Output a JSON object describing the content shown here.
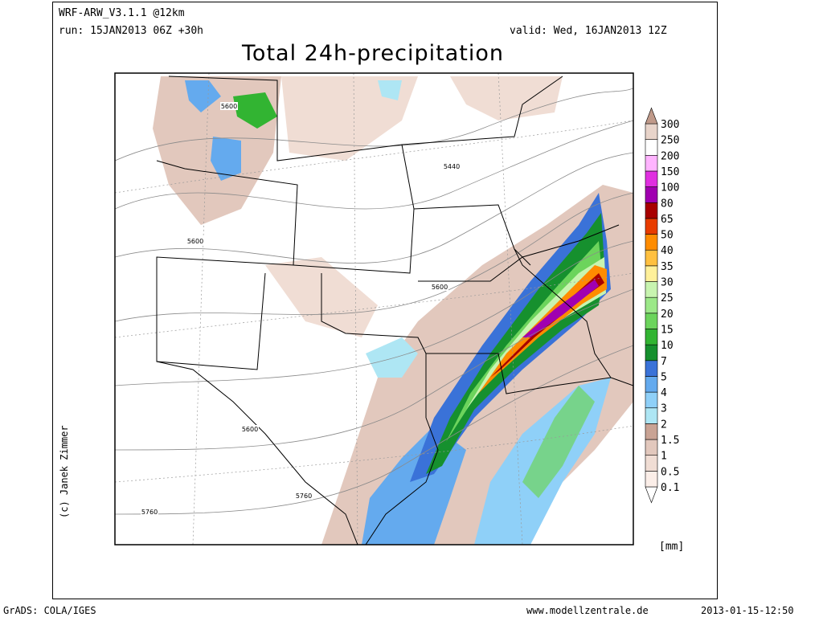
{
  "header": {
    "model": "WRF-ARW_V3.1.1 @12km",
    "run": "run: 15JAN2013 06Z +30h",
    "valid": "valid: Wed, 16JAN2013 12Z",
    "title": "Total 24h-precipitation"
  },
  "map": {
    "contour_labels": [
      "5600",
      "5440",
      "5600",
      "5600",
      "5600",
      "5760",
      "5760"
    ]
  },
  "colorbar": {
    "levels": [
      0.1,
      0.5,
      1,
      1.5,
      2,
      3,
      4,
      5,
      7,
      10,
      15,
      20,
      25,
      30,
      35,
      40,
      50,
      65,
      80,
      100,
      150,
      200,
      250,
      300
    ],
    "colors": [
      "#ffffff",
      "#fbeee8",
      "#f0ddd4",
      "#e2c8bd",
      "#c9a394",
      "#aee6f4",
      "#8fd0f8",
      "#64aaee",
      "#3a72d8",
      "#16902e",
      "#32b432",
      "#6cd45c",
      "#9ce888",
      "#c8f4b0",
      "#fff09a",
      "#ffc040",
      "#ff8c00",
      "#e83c00",
      "#a80000",
      "#a000b0",
      "#e030e0",
      "#ffb4ff",
      "#ffffff",
      "#e8d4ca",
      "#c09a8a"
    ],
    "unit": "[mm]"
  },
  "footer": {
    "copyright": "(c) Janek Zimmer",
    "software": "GrADS: COLA/IGES",
    "website": "www.modellzentrale.de",
    "timestamp": "2013-01-15-12:50"
  }
}
